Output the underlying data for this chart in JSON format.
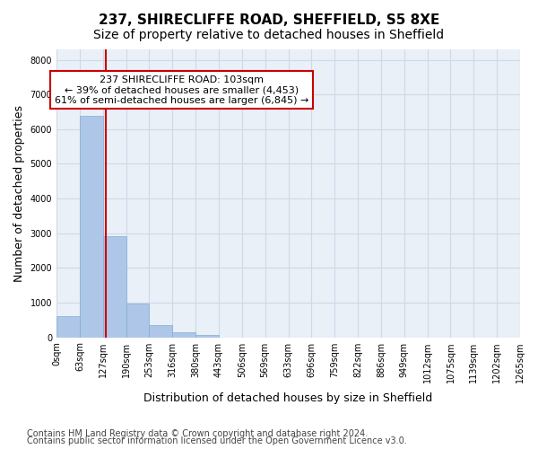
{
  "title_line1": "237, SHIRECLIFFE ROAD, SHEFFIELD, S5 8XE",
  "title_line2": "Size of property relative to detached houses in Sheffield",
  "xlabel": "Distribution of detached houses by size in Sheffield",
  "ylabel": "Number of detached properties",
  "bin_labels": [
    "0sqm",
    "63sqm",
    "127sqm",
    "190sqm",
    "253sqm",
    "316sqm",
    "380sqm",
    "443sqm",
    "506sqm",
    "569sqm",
    "633sqm",
    "696sqm",
    "759sqm",
    "822sqm",
    "886sqm",
    "949sqm",
    "1012sqm",
    "1075sqm",
    "1139sqm",
    "1202sqm",
    "1265sqm"
  ],
  "bar_heights": [
    620,
    6380,
    2920,
    960,
    360,
    140,
    70,
    0,
    0,
    0,
    0,
    0,
    0,
    0,
    0,
    0,
    0,
    0,
    0,
    0
  ],
  "bar_color": "#aec6e8",
  "bar_edge_color": "#7fafd4",
  "vline_x": 1.63,
  "vline_color": "#cc0000",
  "ylim": [
    0,
    8300
  ],
  "yticks": [
    0,
    1000,
    2000,
    3000,
    4000,
    5000,
    6000,
    7000,
    8000
  ],
  "grid_color": "#d0d8e8",
  "background_color": "#eaf0f8",
  "annotation_text": "237 SHIRECLIFFE ROAD: 103sqm\n← 39% of detached houses are smaller (4,453)\n61% of semi-detached houses are larger (6,845) →",
  "annotation_box_color": "#ffffff",
  "annotation_box_edge_color": "#cc0000",
  "footer_line1": "Contains HM Land Registry data © Crown copyright and database right 2024.",
  "footer_line2": "Contains public sector information licensed under the Open Government Licence v3.0.",
  "title_fontsize": 11,
  "subtitle_fontsize": 10,
  "axis_label_fontsize": 9,
  "tick_fontsize": 7,
  "annotation_fontsize": 8,
  "footer_fontsize": 7
}
